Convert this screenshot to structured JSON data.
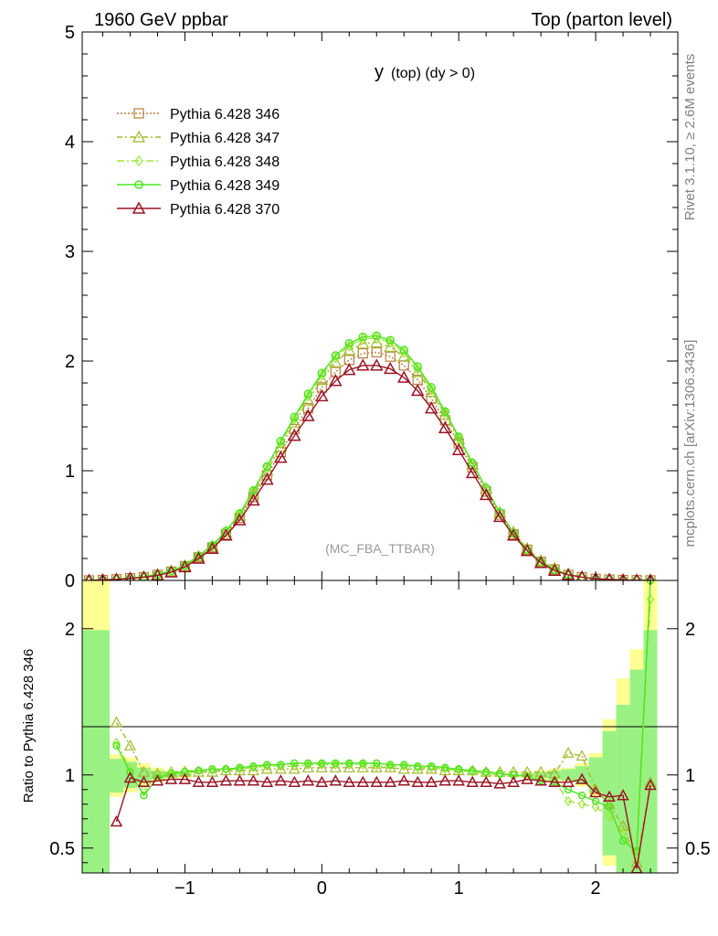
{
  "header": {
    "left_title": "1960 GeV ppbar",
    "right_title": "Top (parton level)"
  },
  "side_text": {
    "rivet": "Rivet 3.1.10, ≥ 2.6M events",
    "mcplots": "mcplots.cern.ch [arXiv:1306.3436]"
  },
  "chart_data": [
    {
      "type": "line",
      "title": "y (top) (dy > 0)",
      "title_main": "y",
      "title_sub": "(top) (dy > 0)",
      "watermark": "(MC_FBA_TTBAR)",
      "xlim": [
        -1.75,
        2.6
      ],
      "ylim": [
        0,
        5
      ],
      "yticks": [
        0,
        1,
        2,
        3,
        4,
        5
      ],
      "ytick_labels": [
        "0",
        "1",
        "2",
        "3",
        "4",
        "5"
      ],
      "legend_position": "top-left",
      "x": [
        -1.7,
        -1.6,
        -1.5,
        -1.4,
        -1.3,
        -1.2,
        -1.1,
        -1.0,
        -0.9,
        -0.8,
        -0.7,
        -0.6,
        -0.5,
        -0.4,
        -0.3,
        -0.2,
        -0.1,
        0.0,
        0.1,
        0.2,
        0.3,
        0.4,
        0.5,
        0.6,
        0.7,
        0.8,
        0.9,
        1.0,
        1.1,
        1.2,
        1.3,
        1.4,
        1.5,
        1.6,
        1.7,
        1.8,
        1.9,
        2.0,
        2.1,
        2.2,
        2.3,
        2.4
      ],
      "series": [
        {
          "name": "Pythia 6.428 346",
          "color": "#b87f3c",
          "dash": "2,2",
          "marker": "square",
          "values": [
            0.0,
            0.004,
            0.01,
            0.02,
            0.03,
            0.05,
            0.08,
            0.13,
            0.21,
            0.3,
            0.42,
            0.57,
            0.76,
            0.96,
            1.17,
            1.38,
            1.57,
            1.76,
            1.9,
            2.01,
            2.07,
            2.08,
            2.04,
            1.96,
            1.83,
            1.66,
            1.46,
            1.25,
            1.03,
            0.81,
            0.6,
            0.42,
            0.28,
            0.17,
            0.1,
            0.05,
            0.03,
            0.015,
            0.008,
            0.004,
            0.002,
            0.001
          ]
        },
        {
          "name": "Pythia 6.428 347",
          "color": "#a5b82e",
          "dash": "6,3,2,3",
          "marker": "triangle",
          "values": [
            0.0,
            0.005,
            0.012,
            0.022,
            0.033,
            0.055,
            0.085,
            0.135,
            0.22,
            0.31,
            0.44,
            0.59,
            0.79,
            1.0,
            1.22,
            1.44,
            1.64,
            1.83,
            1.99,
            2.1,
            2.16,
            2.17,
            2.13,
            2.04,
            1.9,
            1.72,
            1.51,
            1.29,
            1.06,
            0.84,
            0.62,
            0.44,
            0.29,
            0.18,
            0.11,
            0.06,
            0.03,
            0.016,
            0.009,
            0.004,
            0.002,
            0.001
          ]
        },
        {
          "name": "Pythia 6.428 348",
          "color": "#9ee63a",
          "dash": "8,3,2,3",
          "marker": "diamond",
          "values": [
            0.0,
            0.005,
            0.012,
            0.022,
            0.034,
            0.056,
            0.087,
            0.138,
            0.225,
            0.32,
            0.45,
            0.6,
            0.81,
            1.03,
            1.25,
            1.47,
            1.68,
            1.87,
            2.03,
            2.14,
            2.2,
            2.21,
            2.17,
            2.08,
            1.93,
            1.74,
            1.53,
            1.3,
            1.07,
            0.84,
            0.62,
            0.43,
            0.28,
            0.17,
            0.1,
            0.05,
            0.03,
            0.015,
            0.008,
            0.004,
            0.002,
            0.001
          ]
        },
        {
          "name": "Pythia 6.428 349",
          "color": "#4ce620",
          "dash": "",
          "marker": "circle",
          "values": [
            0.0,
            0.005,
            0.012,
            0.022,
            0.034,
            0.056,
            0.087,
            0.138,
            0.225,
            0.32,
            0.45,
            0.61,
            0.82,
            1.04,
            1.27,
            1.49,
            1.7,
            1.89,
            2.05,
            2.16,
            2.22,
            2.23,
            2.19,
            2.1,
            1.95,
            1.76,
            1.54,
            1.31,
            1.07,
            0.84,
            0.62,
            0.43,
            0.28,
            0.17,
            0.1,
            0.05,
            0.03,
            0.015,
            0.008,
            0.004,
            0.002,
            0.001
          ]
        },
        {
          "name": "Pythia 6.428 370",
          "color": "#9b1424",
          "dash": "",
          "marker": "triangle-open",
          "values": [
            0.0,
            0.004,
            0.009,
            0.018,
            0.028,
            0.046,
            0.075,
            0.122,
            0.2,
            0.29,
            0.41,
            0.55,
            0.73,
            0.92,
            1.12,
            1.32,
            1.5,
            1.68,
            1.82,
            1.92,
            1.96,
            1.96,
            1.93,
            1.85,
            1.73,
            1.57,
            1.39,
            1.19,
            0.98,
            0.78,
            0.58,
            0.41,
            0.27,
            0.16,
            0.09,
            0.05,
            0.03,
            0.014,
            0.008,
            0.004,
            0.002,
            0.001
          ]
        }
      ]
    },
    {
      "type": "line",
      "ylabel": "Ratio to Pythia 6.428 346",
      "xlim": [
        -1.75,
        2.6
      ],
      "ylim": [
        0.33,
        2.33
      ],
      "xticks": [
        -1,
        0,
        1,
        2
      ],
      "xtick_labels": [
        "−1",
        "0",
        "1",
        "2"
      ],
      "yticks": [
        0.5,
        1,
        2
      ],
      "ytick_labels": [
        "0.5",
        "1",
        "2"
      ],
      "reference_value": 1.0,
      "band_x": [
        -1.7,
        -1.6,
        -1.5,
        -1.4,
        -1.3,
        -1.2,
        -1.1,
        -1.0,
        1.5,
        1.6,
        1.7,
        1.8,
        1.9,
        2.0,
        2.1,
        2.2,
        2.3,
        2.4
      ],
      "band_yellow_lo": [
        0.33,
        0.33,
        0.85,
        0.88,
        0.93,
        0.95,
        0.97,
        0.98,
        0.98,
        0.97,
        0.96,
        0.95,
        0.92,
        0.85,
        0.38,
        0.33,
        0.33,
        0.33
      ],
      "band_yellow_hi": [
        2.33,
        2.33,
        1.14,
        1.12,
        1.08,
        1.05,
        1.03,
        1.02,
        1.02,
        1.03,
        1.04,
        1.05,
        1.08,
        1.15,
        1.38,
        1.66,
        1.86,
        2.33
      ],
      "band_green_lo": [
        0.33,
        0.33,
        0.88,
        0.91,
        0.95,
        0.97,
        0.98,
        0.99,
        0.99,
        0.98,
        0.97,
        0.96,
        0.94,
        0.88,
        0.45,
        0.33,
        0.33,
        0.33
      ],
      "band_green_hi": [
        1.99,
        1.99,
        1.11,
        1.09,
        1.05,
        1.03,
        1.02,
        1.01,
        1.01,
        1.02,
        1.03,
        1.04,
        1.06,
        1.12,
        1.3,
        1.48,
        1.72,
        1.99
      ],
      "x": [
        -1.5,
        -1.4,
        -1.3,
        -1.2,
        -1.1,
        -1.0,
        -0.9,
        -0.8,
        -0.7,
        -0.6,
        -0.5,
        -0.4,
        -0.3,
        -0.2,
        -0.1,
        0.0,
        0.1,
        0.2,
        0.3,
        0.4,
        0.5,
        0.6,
        0.7,
        0.8,
        0.9,
        1.0,
        1.1,
        1.2,
        1.3,
        1.4,
        1.5,
        1.6,
        1.7,
        1.8,
        1.9,
        2.0,
        2.1,
        2.2,
        2.3,
        2.4
      ],
      "series": [
        {
          "name": "Pythia 6.428 347",
          "color": "#a5b82e",
          "dash": "6,3,2,3",
          "marker": "triangle",
          "values": [
            1.36,
            1.2,
            1.02,
            1.01,
            1.02,
            1.02,
            1.02,
            1.02,
            1.03,
            1.03,
            1.03,
            1.04,
            1.04,
            1.04,
            1.05,
            1.05,
            1.05,
            1.05,
            1.05,
            1.05,
            1.05,
            1.04,
            1.04,
            1.04,
            1.03,
            1.03,
            1.03,
            1.02,
            1.02,
            1.02,
            1.02,
            1.02,
            1.01,
            1.15,
            1.13,
            0.9,
            0.8,
            0.65,
            0.4,
            0.95
          ]
        },
        {
          "name": "Pythia 6.428 348",
          "color": "#9ee63a",
          "dash": "8,3,2,3",
          "marker": "diamond",
          "values": [
            1.22,
            1.04,
            0.9,
            1.0,
            1.02,
            1.03,
            1.03,
            1.03,
            1.04,
            1.04,
            1.05,
            1.06,
            1.06,
            1.06,
            1.07,
            1.07,
            1.07,
            1.07,
            1.07,
            1.06,
            1.06,
            1.06,
            1.05,
            1.05,
            1.04,
            1.03,
            1.02,
            1.01,
            1.0,
            1.0,
            0.99,
            0.97,
            0.96,
            0.82,
            0.8,
            0.78,
            0.72,
            0.6,
            0.45,
            2.2
          ]
        },
        {
          "name": "Pythia 6.428 349",
          "color": "#4ce620",
          "dash": "",
          "marker": "circle",
          "values": [
            1.2,
            1.02,
            0.86,
            0.98,
            1.01,
            1.02,
            1.03,
            1.04,
            1.04,
            1.05,
            1.06,
            1.07,
            1.07,
            1.08,
            1.08,
            1.08,
            1.08,
            1.08,
            1.08,
            1.08,
            1.07,
            1.07,
            1.06,
            1.06,
            1.05,
            1.04,
            1.03,
            1.02,
            1.01,
            1.0,
            0.99,
            0.96,
            0.95,
            0.9,
            0.86,
            0.82,
            0.78,
            0.55,
            0.48,
            2.33
          ]
        },
        {
          "name": "Pythia 6.428 370",
          "color": "#9b1424",
          "dash": "",
          "marker": "triangle-open",
          "values": [
            0.68,
            0.98,
            0.95,
            0.96,
            0.97,
            0.97,
            0.95,
            0.95,
            0.96,
            0.96,
            0.96,
            0.95,
            0.96,
            0.95,
            0.96,
            0.95,
            0.96,
            0.95,
            0.95,
            0.95,
            0.95,
            0.96,
            0.95,
            0.95,
            0.96,
            0.96,
            0.95,
            0.95,
            0.94,
            0.95,
            0.97,
            0.96,
            0.95,
            0.95,
            0.97,
            0.88,
            0.85,
            0.86,
            0.36,
            0.93
          ]
        }
      ]
    }
  ]
}
